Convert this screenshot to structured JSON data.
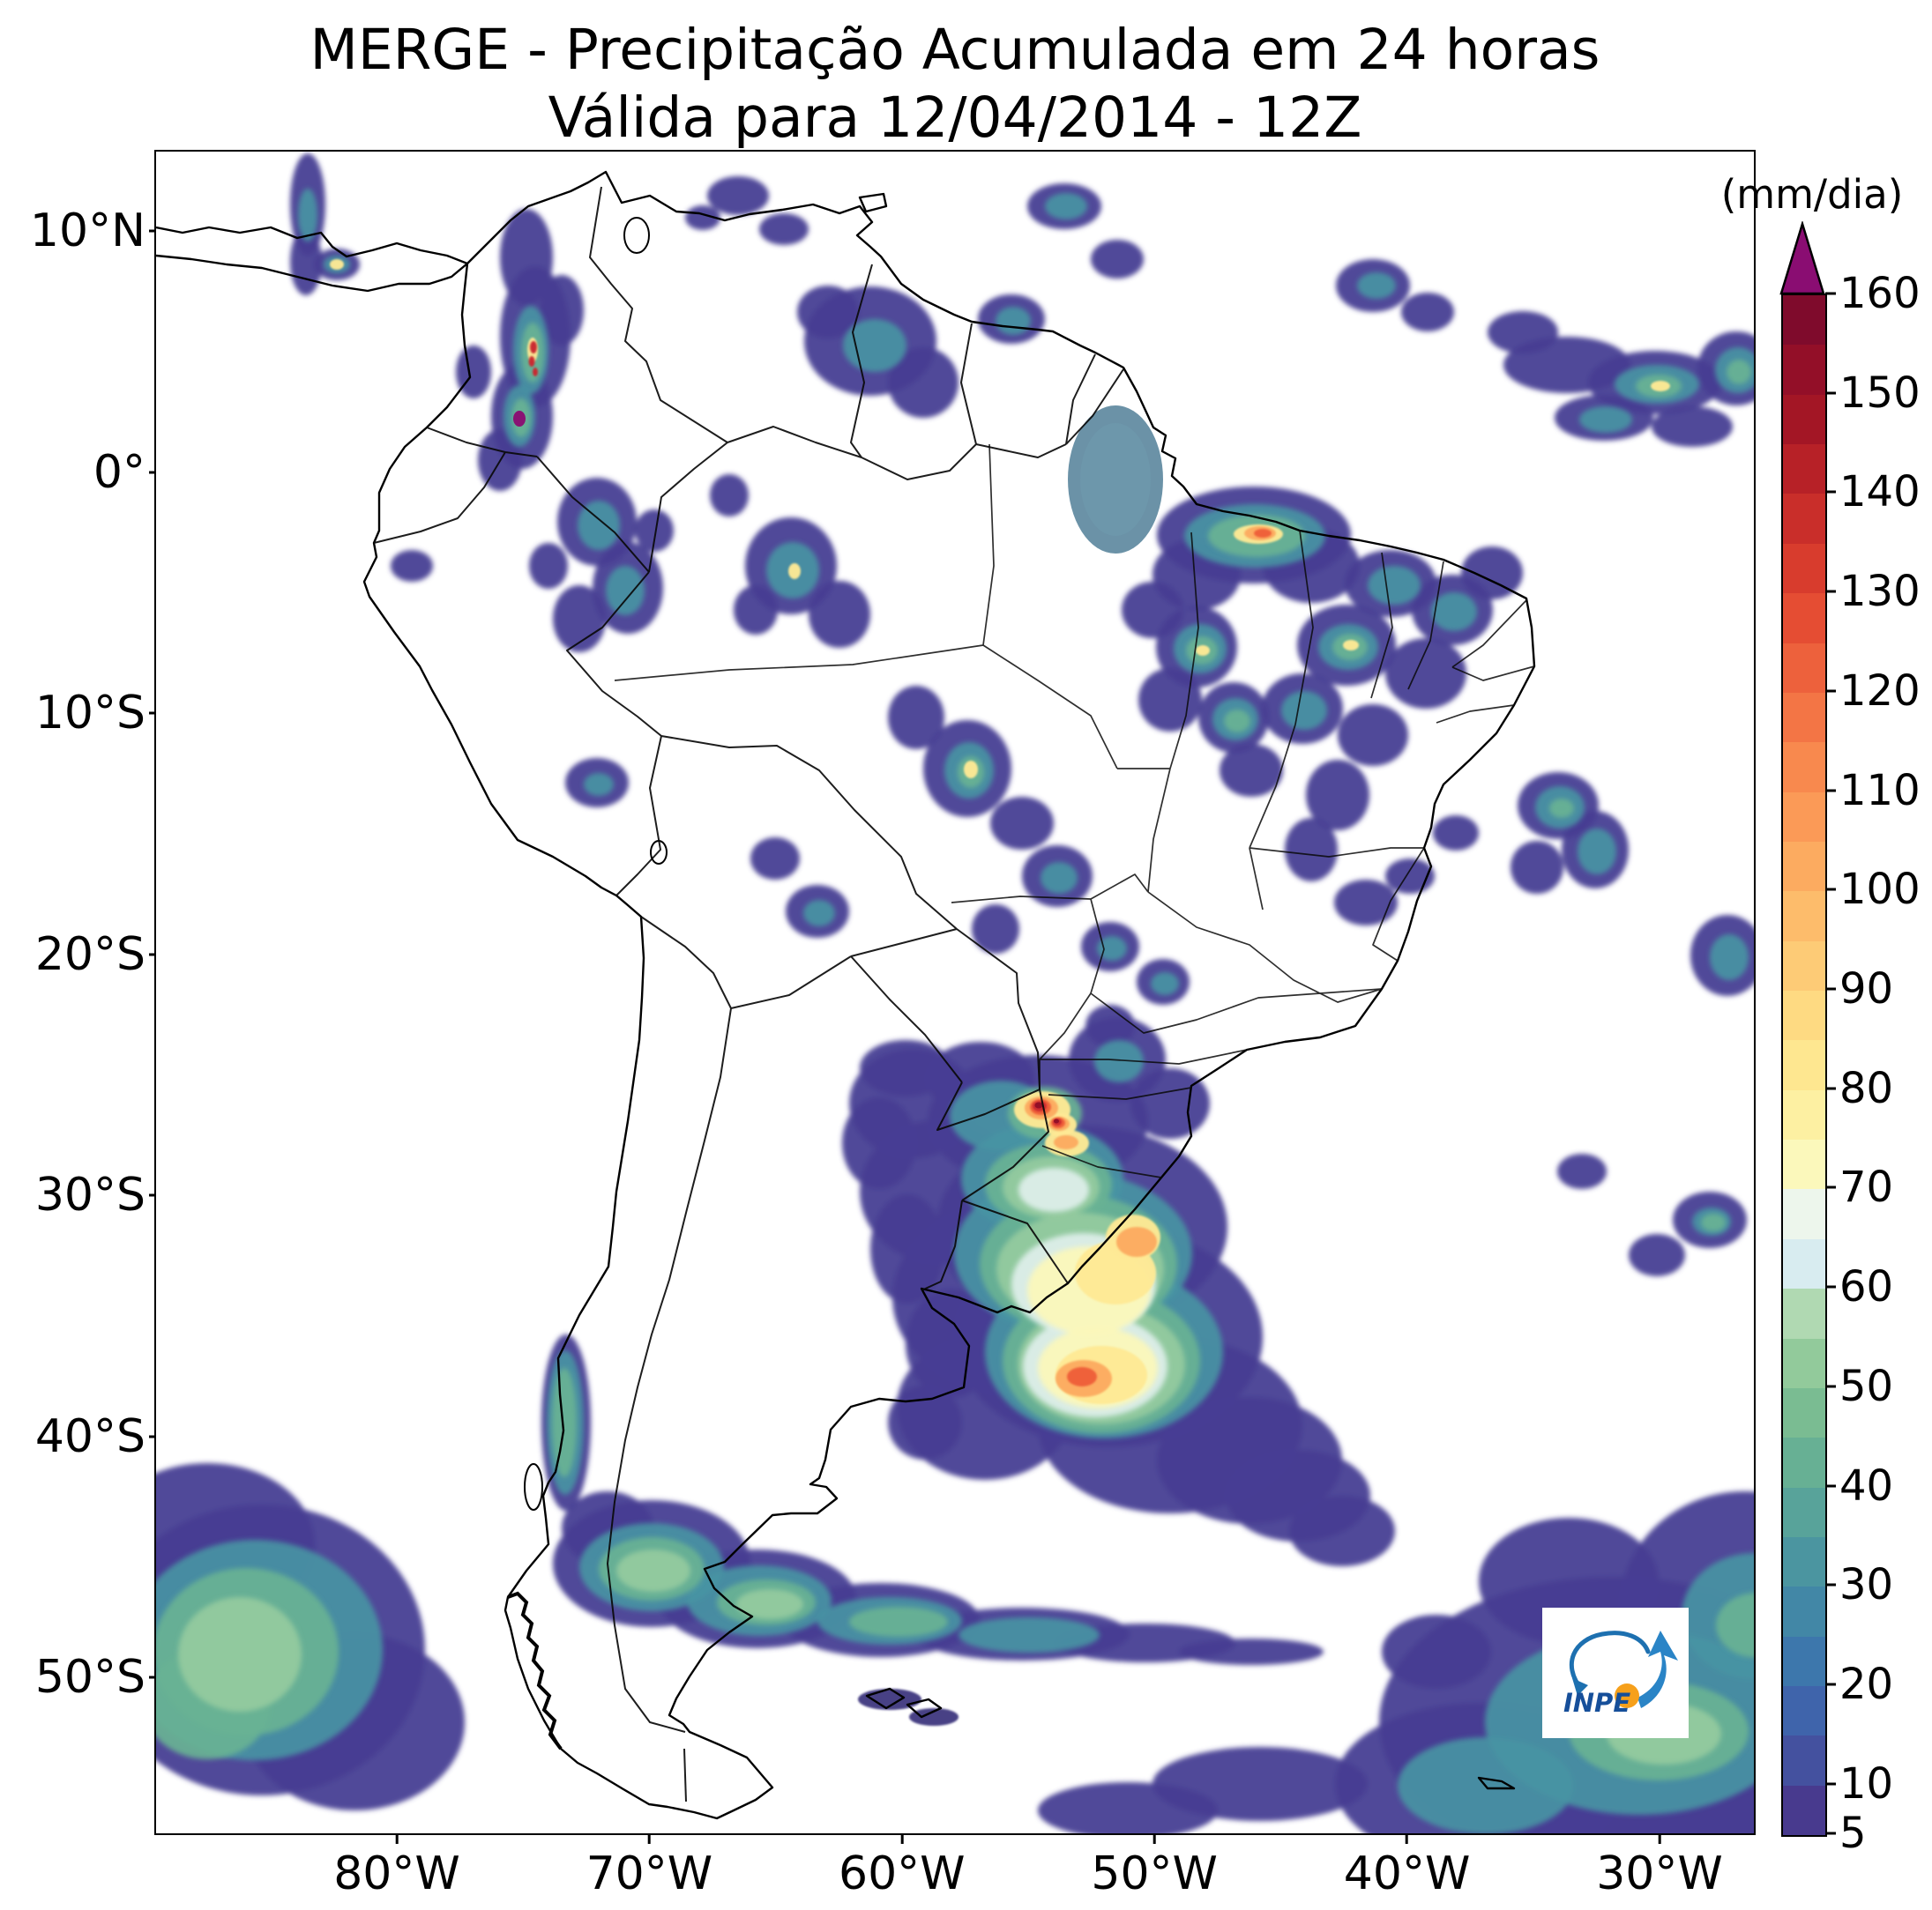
{
  "title": {
    "line1": "MERGE - Precipitação Acumulada em 24 horas",
    "line2": "Válida para 12/04/2014 - 12Z"
  },
  "axes": {
    "x_ticks": [
      "80°W",
      "70°W",
      "60°W",
      "50°W",
      "40°W",
      "30°W"
    ],
    "y_ticks": [
      "10°N",
      "0°",
      "10°S",
      "20°S",
      "30°S",
      "40°S",
      "50°S"
    ]
  },
  "colorbar": {
    "unit_label": "(mm/dia)",
    "min": 5,
    "max": 160,
    "step": 5,
    "ticks": [
      160,
      150,
      140,
      130,
      120,
      110,
      100,
      90,
      80,
      70,
      60,
      50,
      40,
      30,
      20,
      10,
      5
    ],
    "colors": [
      "#483a8e",
      "#44519f",
      "#3f64ab",
      "#3d77ac",
      "#4287a6",
      "#4b95a0",
      "#58a39a",
      "#67b094",
      "#7abc92",
      "#92ca9b",
      "#b0d9b2",
      "#d8ecf0",
      "#edf6ec",
      "#fbf8bb",
      "#fdf0a2",
      "#fee790",
      "#feda82",
      "#fdcb76",
      "#fdbc6b",
      "#fcab60",
      "#fb9a57",
      "#f8894e",
      "#f37545",
      "#ed613c",
      "#e54d33",
      "#d83c2d",
      "#c92e2a",
      "#b72127",
      "#a31625",
      "#930f28",
      "#7f0b2c"
    ],
    "overflow_color": "#8a0d72"
  },
  "logo": {
    "label": "INPE"
  },
  "map": {
    "region": "América do Sul",
    "product": "MERGE",
    "precipitation_features": [
      {
        "area": "Andes da Colômbia",
        "peak_mm_dia": "160+"
      },
      {
        "area": "Litoral do Maranhão / Pará (NE do Brasil)",
        "peak_mm_dia": "130"
      },
      {
        "area": "Interior do Nordeste do Brasil",
        "peak_mm_dia": "80"
      },
      {
        "area": "Atlântico equatorial (ZCIT)",
        "peak_mm_dia": "80"
      },
      {
        "area": "Amazônia central e ocidental",
        "peak_mm_dia": "70"
      },
      {
        "area": "Oeste de Santa Catarina / Misiones",
        "peak_mm_dia": "150"
      },
      {
        "area": "Rio Grande do Sul / Uruguai / Argentina",
        "peak_mm_dia": "130"
      },
      {
        "area": "Costa do Chile e Patagônia",
        "peak_mm_dia": "50"
      },
      {
        "area": "Pacífico sudeste",
        "peak_mm_dia": "40"
      },
      {
        "area": "Atlântico sudoeste",
        "peak_mm_dia": "40"
      }
    ]
  }
}
